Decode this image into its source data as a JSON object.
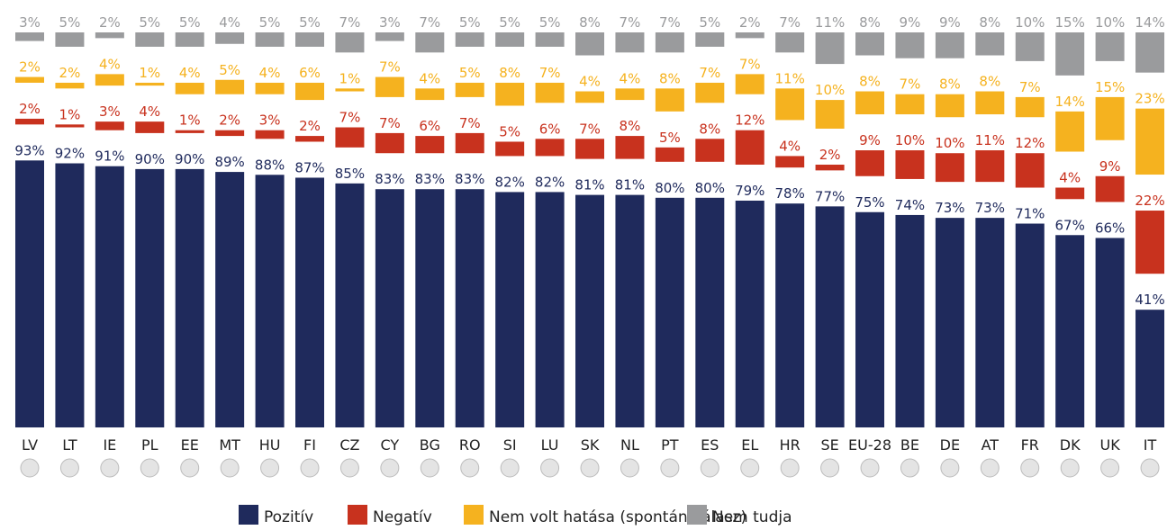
{
  "chart_data": {
    "type": "stacked_bar",
    "categories": [
      "LV",
      "LT",
      "IE",
      "PL",
      "EE",
      "MT",
      "HU",
      "FI",
      "CZ",
      "CY",
      "BG",
      "RO",
      "SI",
      "LU",
      "SK",
      "NL",
      "PT",
      "ES",
      "EL",
      "HR",
      "SE",
      "EU-28",
      "BE",
      "DE",
      "AT",
      "FR",
      "DK",
      "UK",
      "IT"
    ],
    "series": [
      {
        "name": "Pozitív",
        "color": "#1f2a5c",
        "values": [
          93,
          92,
          91,
          90,
          90,
          89,
          88,
          87,
          85,
          83,
          83,
          83,
          82,
          82,
          81,
          81,
          80,
          80,
          79,
          78,
          77,
          75,
          74,
          73,
          73,
          71,
          67,
          66,
          41
        ],
        "value_labels": [
          "93%",
          "92%",
          "91%",
          "90%",
          "90%",
          "89%",
          "88%",
          "87%",
          "85%",
          "83%",
          "83%",
          "83%",
          "82%",
          "82%",
          "81%",
          "81%",
          "80%",
          "80%",
          "79%",
          "78%",
          "77%",
          "75%",
          "74%",
          "73%",
          "73%",
          "71%",
          "67%",
          "66%",
          "41%"
        ]
      },
      {
        "name": "Negatív",
        "color": "#c8321e",
        "values": [
          2,
          1,
          3,
          4,
          1,
          2,
          3,
          2,
          7,
          7,
          6,
          7,
          5,
          6,
          7,
          8,
          5,
          8,
          12,
          4,
          2,
          9,
          10,
          10,
          11,
          12,
          4,
          9,
          22
        ],
        "value_labels": [
          "2%",
          "1%",
          "3%",
          "4%",
          "1%",
          "2%",
          "3%",
          "2%",
          "7%",
          "7%",
          "6%",
          "7%",
          "5%",
          "6%",
          "7%",
          "8%",
          "5%",
          "8%",
          "12%",
          "4%",
          "2%",
          "9%",
          "10%",
          "10%",
          "11%",
          "12%",
          "4%",
          "9%",
          "22%"
        ]
      },
      {
        "name": "Nem volt hatása (spontán válasz)",
        "color": "#f5b21f",
        "values": [
          2,
          2,
          4,
          1,
          4,
          5,
          4,
          6,
          1,
          7,
          4,
          5,
          8,
          7,
          4,
          4,
          8,
          7,
          7,
          11,
          10,
          8,
          7,
          8,
          8,
          7,
          14,
          15,
          23
        ],
        "value_labels": [
          "2%",
          "2%",
          "4%",
          "1%",
          "4%",
          "5%",
          "4%",
          "6%",
          "1%",
          "7%",
          "4%",
          "5%",
          "8%",
          "7%",
          "4%",
          "4%",
          "8%",
          "7%",
          "7%",
          "11%",
          "10%",
          "8%",
          "7%",
          "8%",
          "8%",
          "7%",
          "14%",
          "15%",
          "23%"
        ]
      },
      {
        "name": "Nem tudja",
        "color": "#9a9b9d",
        "values": [
          3,
          5,
          2,
          5,
          5,
          4,
          5,
          5,
          7,
          3,
          7,
          5,
          5,
          5,
          8,
          7,
          7,
          5,
          2,
          7,
          11,
          8,
          9,
          9,
          8,
          10,
          15,
          10,
          14
        ],
        "value_labels": [
          "3%",
          "5%",
          "2%",
          "5%",
          "5%",
          "4%",
          "5%",
          "5%",
          "7%",
          "3%",
          "7%",
          "5%",
          "5%",
          "5%",
          "8%",
          "7%",
          "7%",
          "5%",
          "2%",
          "7%",
          "11%",
          "8%",
          "9%",
          "9%",
          "8%",
          "10%",
          "15%",
          "10%",
          "14%"
        ]
      }
    ]
  }
}
